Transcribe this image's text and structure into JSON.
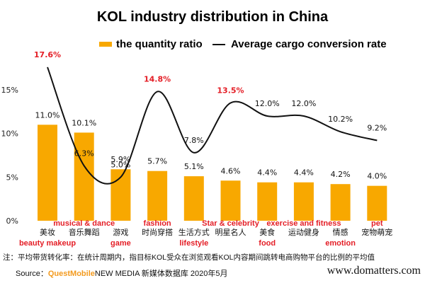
{
  "chart_data": {
    "type": "bar+line",
    "title": "KOL industry distribution in China",
    "legend": {
      "bar_series": "the quantity ratio",
      "line_series": "Average cargo conversion rate",
      "placement": "top"
    },
    "categories": [
      {
        "cn": "美妆",
        "en": "beauty makeup"
      },
      {
        "cn": "音乐舞蹈",
        "en": "musical & dance"
      },
      {
        "cn": "游戏",
        "en": "game"
      },
      {
        "cn": "时尚穿搭",
        "en": "fashion"
      },
      {
        "cn": "生活方式",
        "en": "lifestyle"
      },
      {
        "cn": "明星名人",
        "en": "Star & celebrity"
      },
      {
        "cn": "美食",
        "en": "food"
      },
      {
        "cn": "运动健身",
        "en": "exercise and fitness"
      },
      {
        "cn": "情感",
        "en": "emotion"
      },
      {
        "cn": "宠物萌宠",
        "en": "pet"
      }
    ],
    "series": [
      {
        "name": "the quantity ratio",
        "kind": "bar",
        "values": [
          11.0,
          10.1,
          5.9,
          5.7,
          5.1,
          4.6,
          4.4,
          4.4,
          4.2,
          4.0
        ],
        "labels": [
          "11.0%",
          "10.1%",
          "5.9%",
          "5.7%",
          "5.1%",
          "4.6%",
          "4.4%",
          "4.4%",
          "4.2%",
          "4.0%"
        ]
      },
      {
        "name": "Average cargo conversion rate",
        "kind": "line",
        "values": [
          17.6,
          6.3,
          5.0,
          14.8,
          7.8,
          13.5,
          12.0,
          12.0,
          10.2,
          9.2
        ],
        "labels": [
          "17.6%",
          "6.3%",
          "5.0%",
          "14.8%",
          "7.8%",
          "13.5%",
          "12.0%",
          "12.0%",
          "10.2%",
          "9.2%"
        ],
        "highlighted": [
          true,
          false,
          false,
          true,
          false,
          true,
          false,
          false,
          false,
          false
        ]
      }
    ],
    "y_ticks": [
      "0%",
      "5%",
      "10%",
      "15%"
    ],
    "ylim": [
      0,
      15
    ],
    "colors": {
      "bar": "#f8a800",
      "line": "#111111",
      "highlight": "#e41e26",
      "en_label": "#e41e26"
    }
  },
  "footer": {
    "note": "注：平均带货转化率：在统计周期内，指目标KOL受众在浏览观看KOL内容期间跳转电商购物平台的比例的平均值",
    "source_prefix": "Source：",
    "source_brand": "QuestMobile",
    "source_rest": "NEW MEDIA 新媒体数据库 2020年5月",
    "watermark": "www.domatters.com"
  }
}
